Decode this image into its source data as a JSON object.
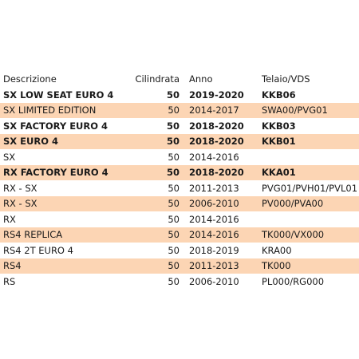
{
  "columns": [
    "Descrizione",
    "Cilindrata",
    "Anno",
    "Telaio/VDS"
  ],
  "rows": [
    {
      "desc": "SX LOW SEAT EURO 4",
      "cc": "50",
      "year": "2019-2020",
      "vds": "KKB06",
      "bold": true,
      "shaded": false
    },
    {
      "desc": "SX LIMITED EDITION",
      "cc": "50",
      "year": "2014-2017",
      "vds": "SWA00/PVG01",
      "bold": false,
      "shaded": true
    },
    {
      "desc": "SX FACTORY EURO 4",
      "cc": "50",
      "year": "2018-2020",
      "vds": "KKB03",
      "bold": true,
      "shaded": false
    },
    {
      "desc": "SX EURO 4",
      "cc": "50",
      "year": "2018-2020",
      "vds": "KKB01",
      "bold": true,
      "shaded": true
    },
    {
      "desc": "SX",
      "cc": "50",
      "year": "2014-2016",
      "vds": "",
      "bold": false,
      "shaded": false
    },
    {
      "desc": "RX FACTORY EURO 4",
      "cc": "50",
      "year": "2018-2020",
      "vds": "KKA01",
      "bold": true,
      "shaded": true
    },
    {
      "desc": "RX - SX",
      "cc": "50",
      "year": "2011-2013",
      "vds": "PVG01/PVH01/PVL01",
      "bold": false,
      "shaded": false
    },
    {
      "desc": "RX - SX",
      "cc": "50",
      "year": "2006-2010",
      "vds": "PV000/PVA00",
      "bold": false,
      "shaded": true
    },
    {
      "desc": "RX",
      "cc": "50",
      "year": "2014-2016",
      "vds": "",
      "bold": false,
      "shaded": false
    },
    {
      "desc": "RS4 REPLICA",
      "cc": "50",
      "year": "2014-2016",
      "vds": "TK000/VX000",
      "bold": false,
      "shaded": true
    },
    {
      "desc": "RS4 2T EURO 4",
      "cc": "50",
      "year": "2018-2019",
      "vds": "KRA00",
      "bold": false,
      "shaded": false
    },
    {
      "desc": "RS4",
      "cc": "50",
      "year": "2011-2013",
      "vds": "TK000",
      "bold": false,
      "shaded": true
    },
    {
      "desc": "RS",
      "cc": "50",
      "year": "2006-2010",
      "vds": "PL000/RG000",
      "bold": false,
      "shaded": false
    }
  ]
}
